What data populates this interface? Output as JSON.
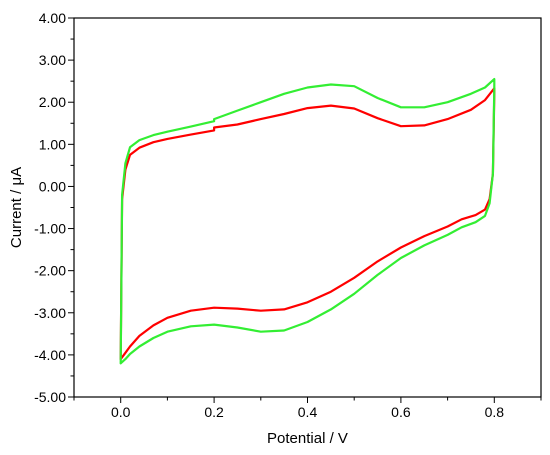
{
  "chart_data": {
    "type": "line",
    "title": "",
    "xlabel": "Potential / V",
    "ylabel": "Current / μA",
    "xlim": [
      -0.1,
      0.9
    ],
    "ylim": [
      -5.0,
      4.0
    ],
    "x_ticks": [
      0.0,
      0.2,
      0.4,
      0.6,
      0.8
    ],
    "x_tick_labels": [
      "0.0",
      "0.2",
      "0.4",
      "0.6",
      "0.8"
    ],
    "y_ticks": [
      -5.0,
      -4.0,
      -3.0,
      -2.0,
      -1.0,
      0.0,
      1.0,
      2.0,
      3.0,
      4.0
    ],
    "y_tick_labels": [
      "-5.00",
      "-4.00",
      "-3.00",
      "-2.00",
      "-1.00",
      "0.00",
      "1.00",
      "2.00",
      "3.00",
      "4.00"
    ],
    "grid": false,
    "legend": "none",
    "series": [
      {
        "color": "#ff0000",
        "x": [
          0.0,
          0.003,
          0.01,
          0.02,
          0.04,
          0.07,
          0.1,
          0.15,
          0.2,
          0.2,
          0.25,
          0.3,
          0.35,
          0.4,
          0.45,
          0.5,
          0.55,
          0.6,
          0.65,
          0.7,
          0.75,
          0.78,
          0.8,
          0.8,
          0.797,
          0.79,
          0.78,
          0.76,
          0.73,
          0.7,
          0.65,
          0.6,
          0.55,
          0.5,
          0.45,
          0.4,
          0.35,
          0.3,
          0.25,
          0.2,
          0.15,
          0.1,
          0.07,
          0.04,
          0.02,
          0.01,
          0.0,
          0.0
        ],
        "y": [
          -4.1,
          -0.3,
          0.4,
          0.75,
          0.92,
          1.05,
          1.13,
          1.23,
          1.33,
          1.4,
          1.47,
          1.6,
          1.72,
          1.86,
          1.92,
          1.85,
          1.62,
          1.43,
          1.45,
          1.6,
          1.82,
          2.05,
          2.33,
          2.2,
          0.3,
          -0.3,
          -0.55,
          -0.68,
          -0.78,
          -0.95,
          -1.18,
          -1.45,
          -1.78,
          -2.17,
          -2.5,
          -2.75,
          -2.92,
          -2.95,
          -2.9,
          -2.88,
          -2.95,
          -3.12,
          -3.3,
          -3.55,
          -3.8,
          -3.95,
          -4.1,
          -4.1
        ]
      },
      {
        "color": "#33ee33",
        "x": [
          0.0,
          0.003,
          0.01,
          0.02,
          0.04,
          0.07,
          0.1,
          0.15,
          0.2,
          0.2,
          0.25,
          0.3,
          0.35,
          0.4,
          0.45,
          0.5,
          0.55,
          0.6,
          0.65,
          0.7,
          0.75,
          0.78,
          0.8,
          0.8,
          0.797,
          0.79,
          0.78,
          0.76,
          0.73,
          0.7,
          0.65,
          0.6,
          0.55,
          0.5,
          0.45,
          0.4,
          0.35,
          0.3,
          0.25,
          0.2,
          0.15,
          0.1,
          0.07,
          0.04,
          0.02,
          0.01,
          0.0,
          0.0
        ],
        "y": [
          -4.2,
          -0.2,
          0.55,
          0.93,
          1.1,
          1.22,
          1.3,
          1.42,
          1.55,
          1.6,
          1.8,
          2.0,
          2.2,
          2.35,
          2.42,
          2.38,
          2.1,
          1.88,
          1.88,
          2.0,
          2.2,
          2.35,
          2.55,
          2.35,
          0.3,
          -0.4,
          -0.7,
          -0.85,
          -0.97,
          -1.15,
          -1.4,
          -1.7,
          -2.1,
          -2.55,
          -2.92,
          -3.22,
          -3.42,
          -3.45,
          -3.35,
          -3.28,
          -3.32,
          -3.45,
          -3.6,
          -3.8,
          -3.98,
          -4.1,
          -4.2,
          -4.2
        ]
      }
    ]
  }
}
